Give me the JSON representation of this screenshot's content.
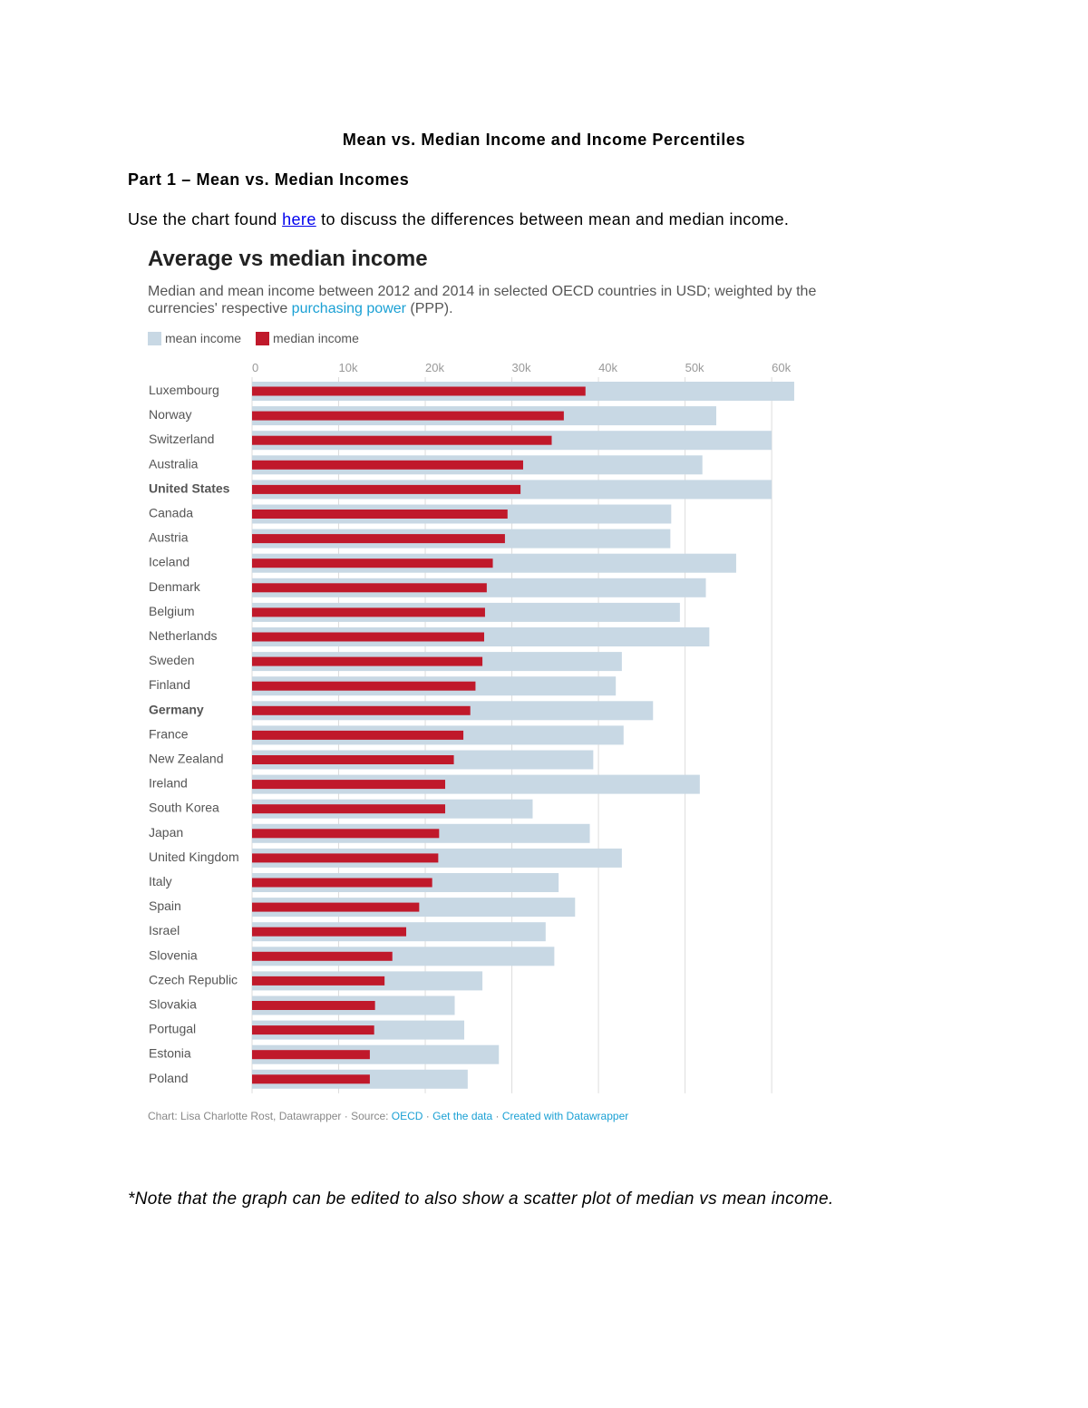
{
  "document": {
    "title": "Mean vs. Median Income and Income Percentiles",
    "part_heading": "Part 1 – Mean vs. Median  Incomes",
    "intro_before": "Use the chart found ",
    "intro_link": "here",
    "intro_after": " to discuss the differences between mean and median income.",
    "note": "*Note that the graph can be edited to also show a scatter plot of median vs mean income."
  },
  "chart_header": {
    "title": "Average vs median income",
    "subtitle_part1": "Median and mean income between 2012 and 2014 in selected OECD countries in USD; weighted by the currencies' respective ",
    "subtitle_link": "purchasing power",
    "subtitle_part2": " (PPP).",
    "legend_mean": "mean income",
    "legend_median": "median income",
    "footer_credit": "Chart: Lisa Charlotte Rost, Datawrapper · Source: ",
    "footer_source": "OECD",
    "footer_sep1": " · ",
    "footer_get_data": "Get the data",
    "footer_sep2": " · ",
    "footer_created": "Created with Datawrapper"
  },
  "colors": {
    "mean": "#c8d8e4",
    "median": "#c0192b",
    "link": "#1aa0d4",
    "grid": "#dddddd"
  },
  "chart_data": {
    "type": "bar",
    "orientation": "horizontal",
    "xlim": [
      0,
      62500
    ],
    "ticks": [
      0,
      10000,
      20000,
      30000,
      40000,
      50000,
      60000
    ],
    "tick_labels": [
      "0",
      "10k",
      "20k",
      "30k",
      "40k",
      "50k",
      "60k"
    ],
    "categories": [
      "Luxembourg",
      "Norway",
      "Switzerland",
      "Australia",
      "United States",
      "Canada",
      "Austria",
      "Iceland",
      "Denmark",
      "Belgium",
      "Netherlands",
      "Sweden",
      "Finland",
      "Germany",
      "France",
      "New Zealand",
      "Ireland",
      "South Korea",
      "Japan",
      "United Kingdom",
      "Italy",
      "Spain",
      "Israel",
      "Slovenia",
      "Czech Republic",
      "Slovakia",
      "Portugal",
      "Estonia",
      "Poland"
    ],
    "bold_categories": [
      "United States",
      "Germany"
    ],
    "series": [
      {
        "name": "mean income",
        "values": [
          62600,
          53600,
          60000,
          52000,
          60000,
          48400,
          48300,
          55900,
          52400,
          49400,
          52800,
          42700,
          42000,
          46300,
          42900,
          39400,
          51700,
          32400,
          39000,
          42700,
          35400,
          37300,
          33900,
          34900,
          26600,
          23400,
          24500,
          28500,
          24900
        ]
      },
      {
        "name": "median income",
        "values": [
          38500,
          36000,
          34600,
          31300,
          31000,
          29500,
          29200,
          27800,
          27100,
          26900,
          26800,
          26600,
          25800,
          25200,
          24400,
          23300,
          22300,
          22300,
          21600,
          21500,
          20800,
          19300,
          17800,
          16200,
          15300,
          14200,
          14100,
          13600,
          13600
        ]
      }
    ]
  }
}
